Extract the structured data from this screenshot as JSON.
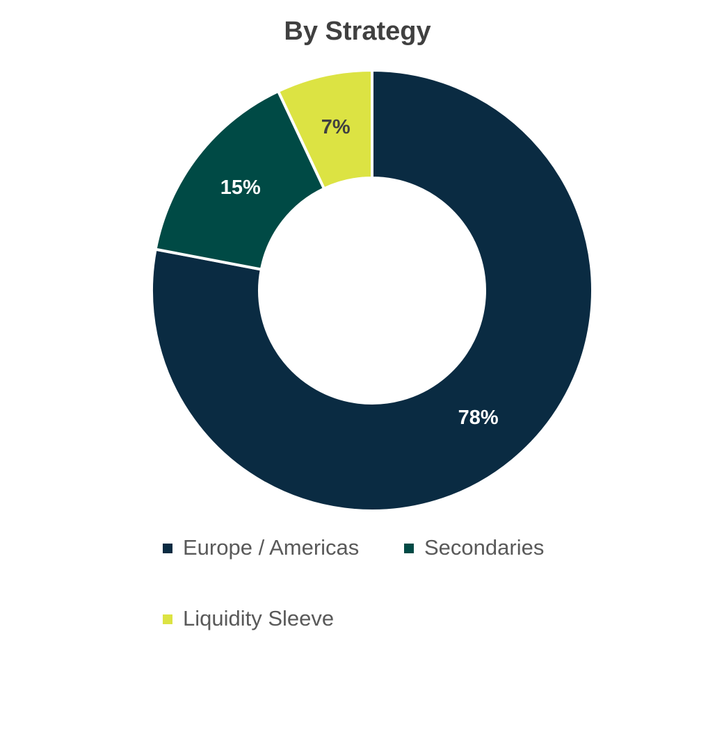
{
  "chart_data": {
    "type": "donut",
    "title": "By Strategy",
    "categories": [
      "Europe / Americas",
      "Secondaries",
      "Liquidity Sleeve"
    ],
    "values": [
      78,
      15,
      7
    ],
    "value_labels": [
      "78%",
      "15%",
      "7%"
    ],
    "colors": [
      "#0a2b42",
      "#004a45",
      "#dce343"
    ],
    "legend": "bottom"
  }
}
